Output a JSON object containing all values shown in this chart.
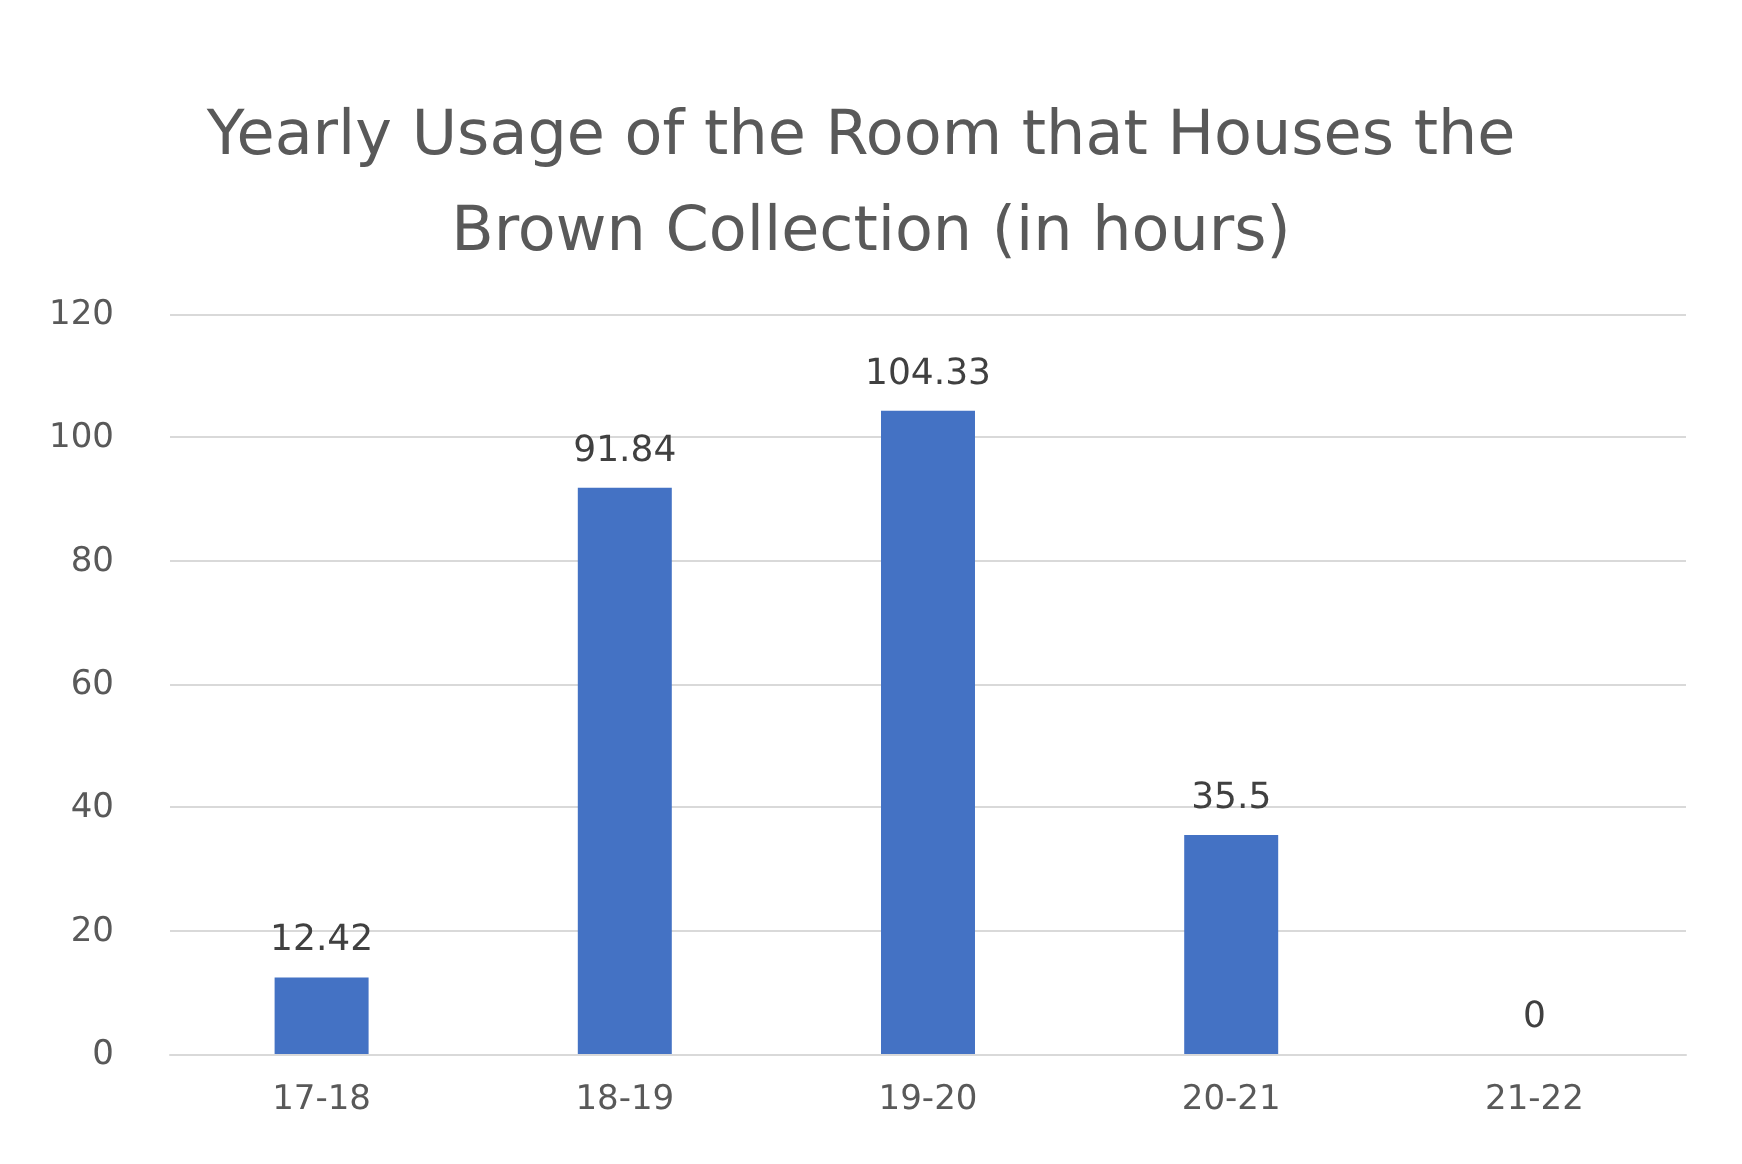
{
  "chart_data": {
    "type": "bar",
    "title": "Yearly Usage of the Room that Houses the Brown Collection (in hours)",
    "categories": [
      "17-18",
      "18-19",
      "19-20",
      "20-21",
      "21-22"
    ],
    "values": [
      12.42,
      91.84,
      104.33,
      35.5,
      0
    ],
    "color": "#4472c4",
    "ylim": [
      0,
      120
    ],
    "yticks": [
      0,
      20,
      40,
      60,
      80,
      100,
      120
    ],
    "grid": "y",
    "data_labels": true
  }
}
